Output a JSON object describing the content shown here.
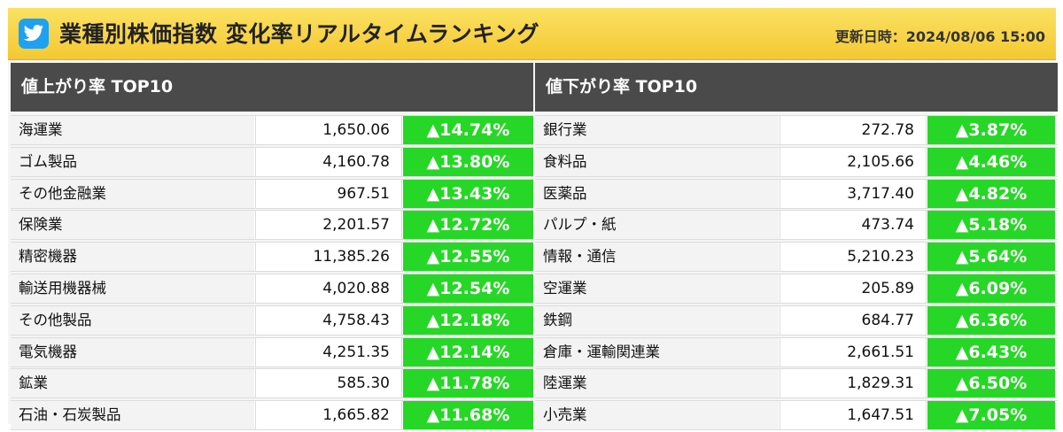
{
  "header": {
    "logo_icon": "bird-icon",
    "title": "業種別株価指数 変化率リアルタイムランキング",
    "updated": "更新日時：2024/08/06 15:00"
  },
  "colors": {
    "header_bg": "#f6cf3e",
    "panel_head_bg": "#4a4a4a",
    "pct_bg": "#27d727",
    "logo_bg": "#1da1f2"
  },
  "left": {
    "heading": "値上がり率 TOP10",
    "rows": [
      {
        "name": "海運業",
        "value": "1,650.06",
        "pct": "▲14.74%"
      },
      {
        "name": "ゴム製品",
        "value": "4,160.78",
        "pct": "▲13.80%"
      },
      {
        "name": "その他金融業",
        "value": "967.51",
        "pct": "▲13.43%"
      },
      {
        "name": "保険業",
        "value": "2,201.57",
        "pct": "▲12.72%"
      },
      {
        "name": "精密機器",
        "value": "11,385.26",
        "pct": "▲12.55%"
      },
      {
        "name": "輸送用機器械",
        "value": "4,020.88",
        "pct": "▲12.54%"
      },
      {
        "name": "その他製品",
        "value": "4,758.43",
        "pct": "▲12.18%"
      },
      {
        "name": "電気機器",
        "value": "4,251.35",
        "pct": "▲12.14%"
      },
      {
        "name": "鉱業",
        "value": "585.30",
        "pct": "▲11.78%"
      },
      {
        "name": "石油・石炭製品",
        "value": "1,665.82",
        "pct": "▲11.68%"
      }
    ]
  },
  "right": {
    "heading": "値下がり率 TOP10",
    "rows": [
      {
        "name": "銀行業",
        "value": "272.78",
        "pct": "▲3.87%"
      },
      {
        "name": "食料品",
        "value": "2,105.66",
        "pct": "▲4.46%"
      },
      {
        "name": "医薬品",
        "value": "3,717.40",
        "pct": "▲4.82%"
      },
      {
        "name": "パルプ・紙",
        "value": "473.74",
        "pct": "▲5.18%"
      },
      {
        "name": "情報・通信",
        "value": "5,210.23",
        "pct": "▲5.64%"
      },
      {
        "name": "空運業",
        "value": "205.89",
        "pct": "▲6.09%"
      },
      {
        "name": "鉄鋼",
        "value": "684.77",
        "pct": "▲6.36%"
      },
      {
        "name": "倉庫・運輸関連業",
        "value": "2,661.51",
        "pct": "▲6.43%"
      },
      {
        "name": "陸運業",
        "value": "1,829.31",
        "pct": "▲6.50%"
      },
      {
        "name": "小売業",
        "value": "1,647.51",
        "pct": "▲7.05%"
      }
    ]
  }
}
